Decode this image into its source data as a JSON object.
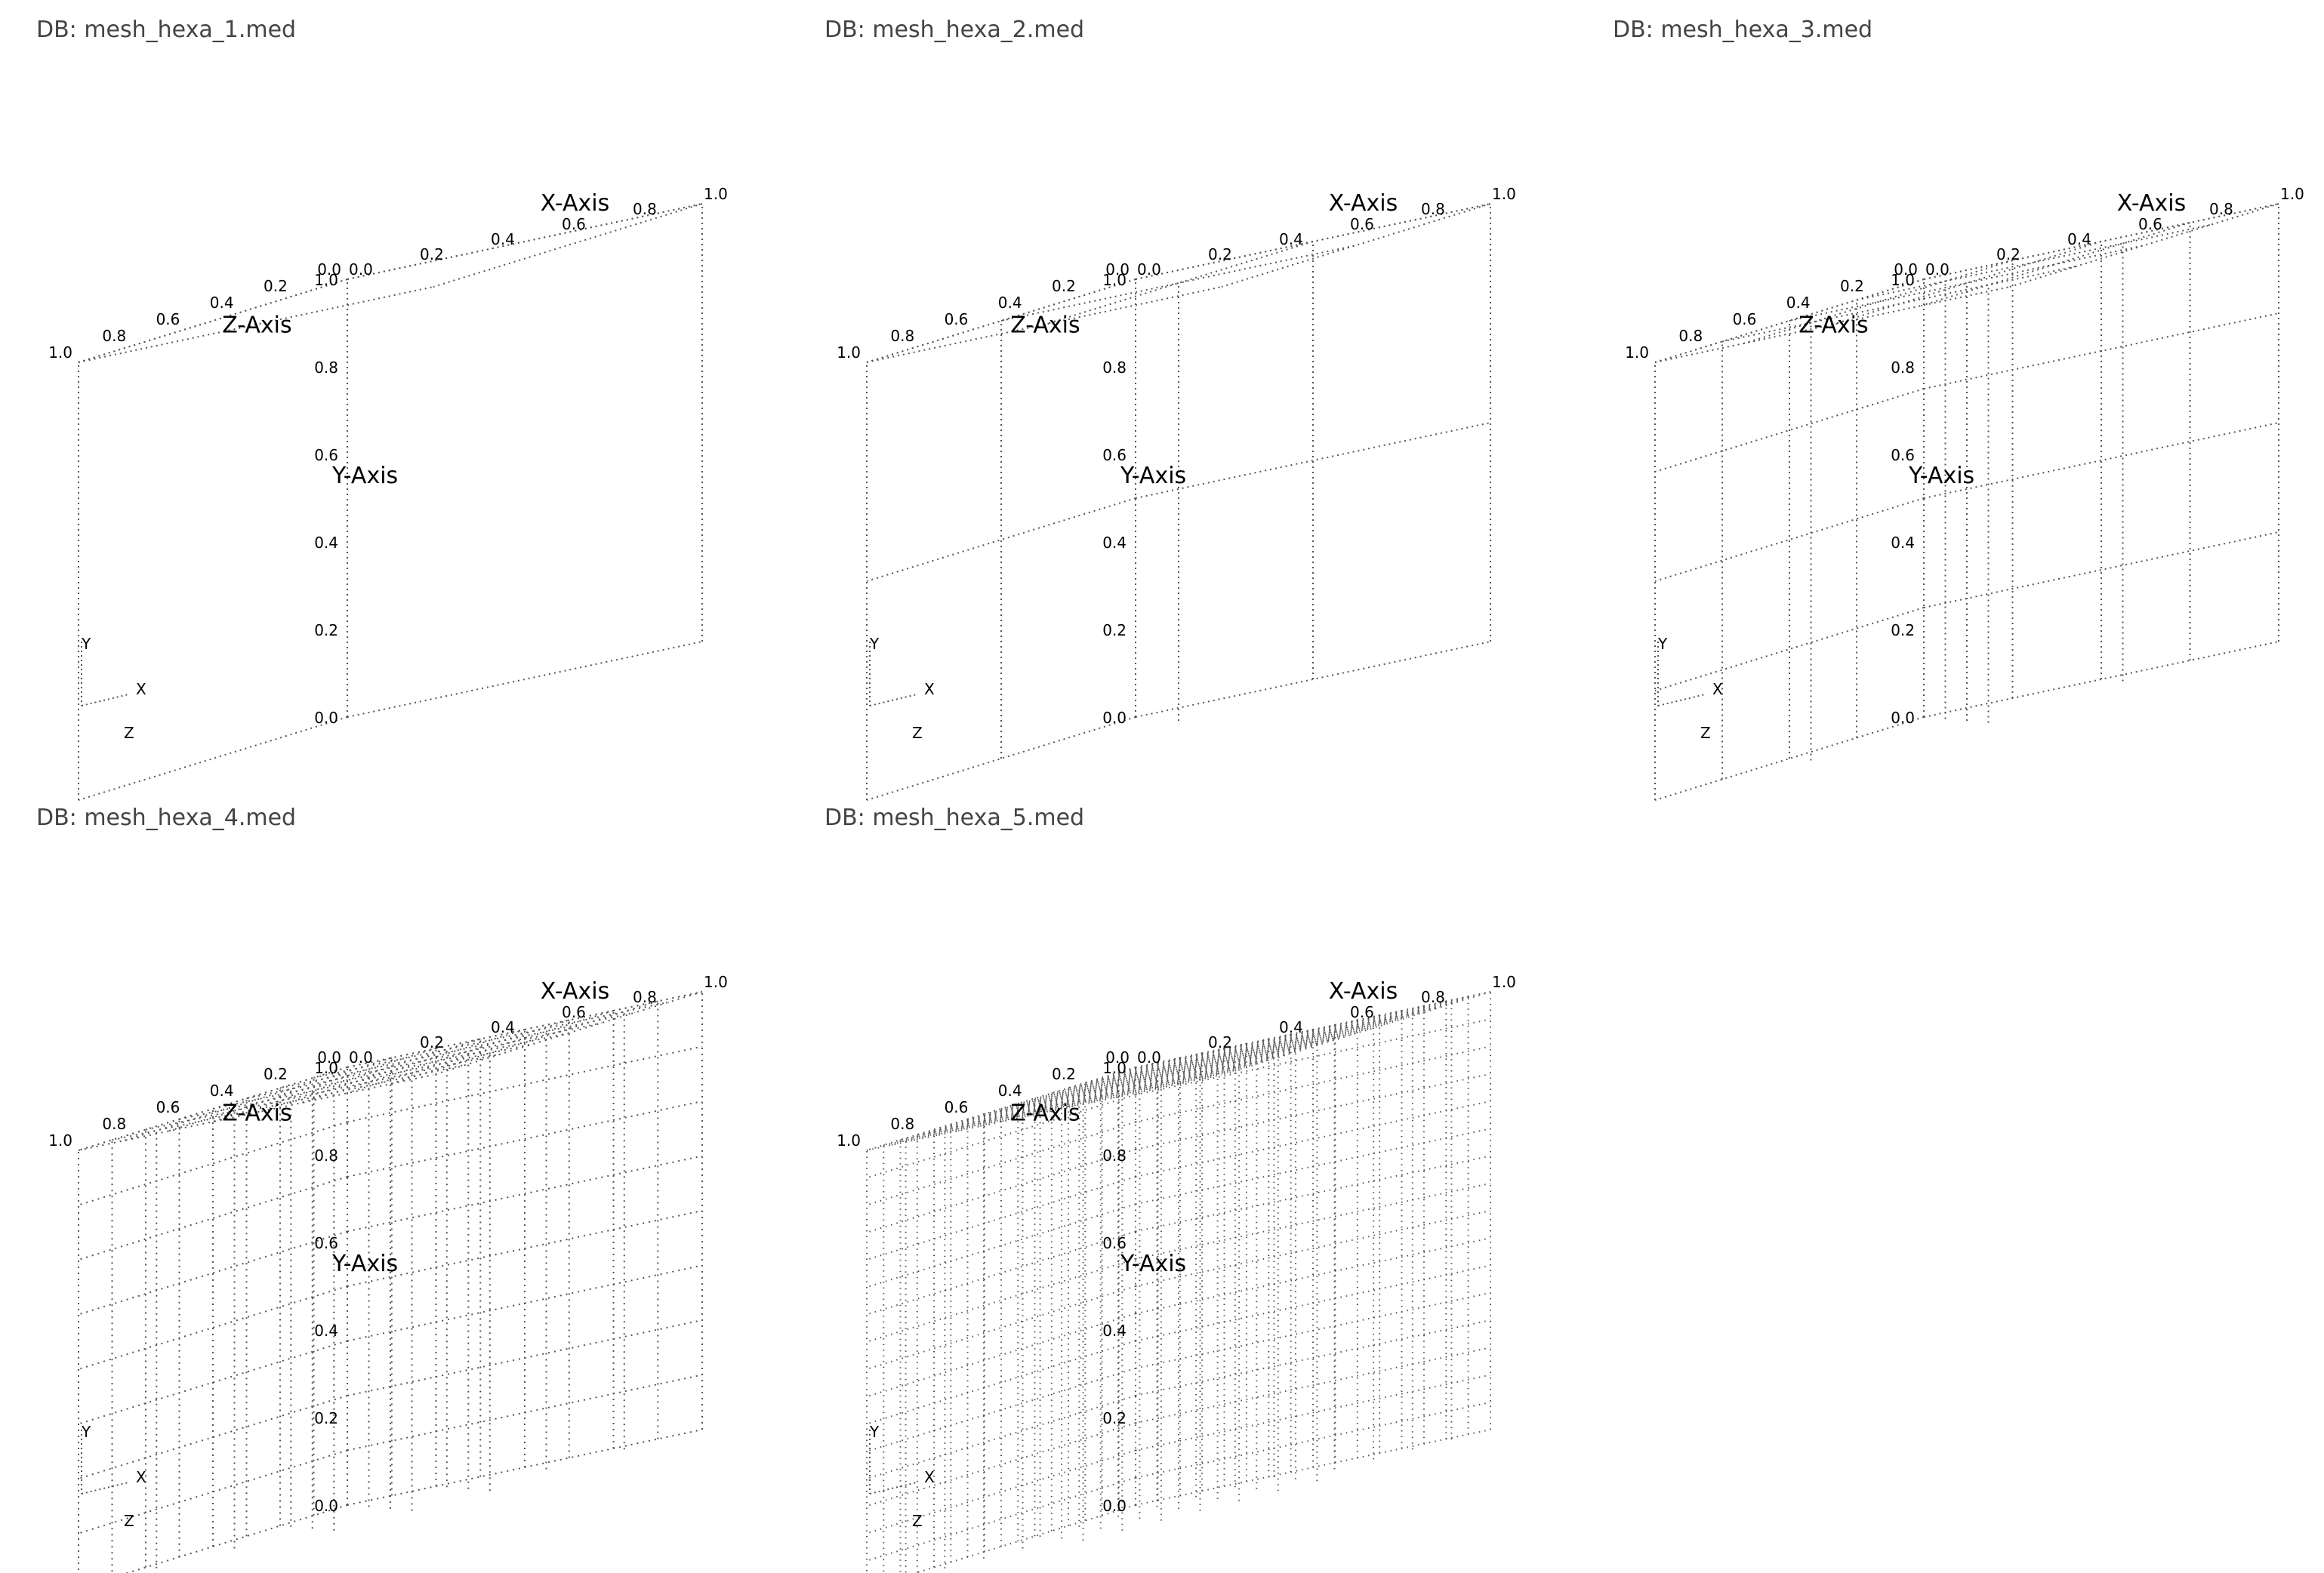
{
  "view": {
    "title_prefix": "DB: ",
    "axis_labels": {
      "x": "X-Axis",
      "y": "Y-Axis",
      "z": "Z-Axis"
    },
    "triad_labels": {
      "x": "X",
      "y": "Y",
      "z": "Z"
    },
    "colors": {
      "background": "#ffffff",
      "title": "#444444",
      "mesh": "#555555",
      "text": "#000000"
    }
  },
  "panels": [
    {
      "db": "mesh_hexa_1.med",
      "divisions": 1
    },
    {
      "db": "mesh_hexa_2.med",
      "divisions": 2
    },
    {
      "db": "mesh_hexa_3.med",
      "divisions": 4
    },
    {
      "db": "mesh_hexa_4.med",
      "divisions": 8
    },
    {
      "db": "mesh_hexa_5.med",
      "divisions": 16
    }
  ],
  "chart_data": {
    "type": "mesh-3d",
    "axis_range": [
      0.0,
      1.0
    ],
    "tick_labels": {
      "x": [
        "0.0",
        "0.2",
        "0.4",
        "0.6",
        "0.8",
        "1.0"
      ],
      "y": [
        "0.0",
        "0.2",
        "0.4",
        "0.6",
        "0.8",
        "1.0"
      ],
      "z": [
        "0.0",
        "0.2",
        "0.4",
        "0.6",
        "0.8",
        "1.0"
      ]
    }
  }
}
